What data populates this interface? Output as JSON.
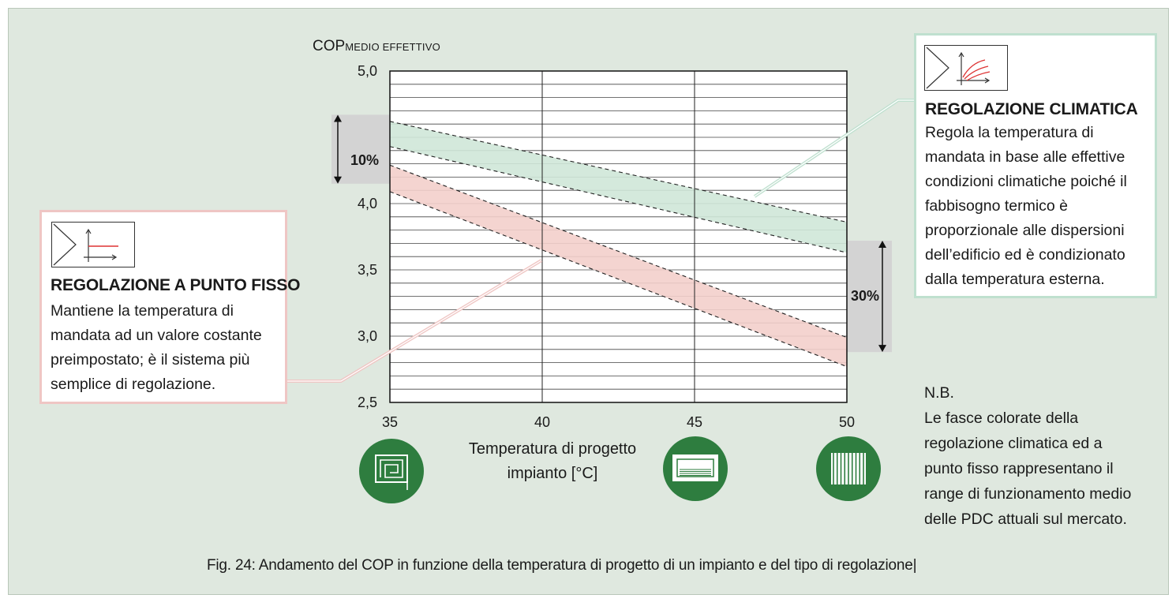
{
  "chart_data": {
    "type": "area",
    "ylabel_main": "COP",
    "ylabel_sub": "MEDIO EFFETTIVO",
    "xlabel": "Temperatura di progetto\nimpianto [°C]",
    "xlim": [
      35,
      50
    ],
    "ylim": [
      2.5,
      5.0
    ],
    "x_ticks": [
      "35",
      "40",
      "45",
      "50"
    ],
    "y_ticks": [
      "5,0",
      "4,0",
      "3,5",
      "3,0",
      "2,5"
    ],
    "y_tick_values": [
      5.0,
      4.0,
      3.5,
      3.0,
      2.5
    ],
    "grid": true,
    "bands": [
      {
        "key": "climatica",
        "color": "#cfe7d8",
        "x": [
          35,
          50
        ],
        "upper": [
          4.62,
          3.86
        ],
        "lower": [
          4.43,
          3.63
        ]
      },
      {
        "key": "fisso",
        "color": "#f3cfcb",
        "x": [
          35,
          50
        ],
        "upper": [
          4.29,
          2.99
        ],
        "lower": [
          4.09,
          2.77
        ]
      }
    ],
    "annotations": [
      {
        "label": "10%",
        "y_range": [
          4.15,
          4.67
        ]
      },
      {
        "label": "30%",
        "y_range": [
          2.88,
          3.72
        ]
      }
    ]
  },
  "box_fisso": {
    "title": "REGOLAZIONE A PUNTO FISSO",
    "text": "Mantiene la temperatura di\nmandata ad un valore costante\npreimpostato; è il  sistema più\nsemplice di regolazione.",
    "border_color": "#efc6c4",
    "icon": "fixed-point-curve-icon"
  },
  "box_clima": {
    "title": "REGOLAZIONE CLIMATICA",
    "text": "Regola la temperatura di\nmandata in base alle effettive\ncondizioni climatiche poiché il\nfabbisogno termico è\nproporzionale alle dispersioni\ndell’edificio ed è condizionato\ndalla temperatura esterna.",
    "border_color": "#bfe0cf",
    "icon": "climatic-curves-icon"
  },
  "nb": "N.B.\nLe fasce colorate della\nregolazione climatica ed a\npunto fisso rappresentano il\nrange di funzionamento medio\ndelle PDC attuali sul mercato.",
  "emitter_icons": [
    "floor-heating-icon",
    "fan-coil-icon",
    "radiator-icon"
  ],
  "caption": "Fig. 24: Andamento del COP in funzione della temperatura di progetto di un impianto e del tipo di regolazione|",
  "colors": {
    "panel": "#dfe8df",
    "icon_circle": "#2e7d3f",
    "grey_band": "#d3d3d3"
  }
}
